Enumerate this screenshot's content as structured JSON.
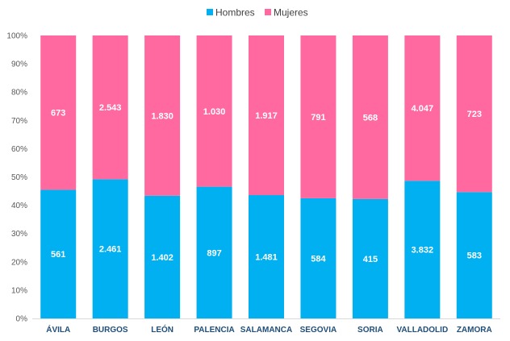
{
  "chart_data": {
    "type": "bar",
    "stacking": "percent",
    "categories": [
      "ÁVILA",
      "BURGOS",
      "LEÓN",
      "PALENCIA",
      "SALAMANCA",
      "SEGOVIA",
      "SORIA",
      "VALLADOLID",
      "ZAMORA"
    ],
    "series": [
      {
        "name": "Hombres",
        "color": "#00b0f0",
        "values": [
          561,
          2461,
          1402,
          897,
          1481,
          584,
          415,
          3832,
          583
        ],
        "labels": [
          "561",
          "2.461",
          "1.402",
          "897",
          "1.481",
          "584",
          "415",
          "3.832",
          "583"
        ]
      },
      {
        "name": "Mujeres",
        "color": "#ff69a0",
        "values": [
          673,
          2543,
          1830,
          1030,
          1917,
          791,
          568,
          4047,
          723
        ],
        "labels": [
          "673",
          "2.543",
          "1.830",
          "1.030",
          "1.917",
          "791",
          "568",
          "4.047",
          "723"
        ]
      }
    ],
    "yticks": [
      "0%",
      "10%",
      "20%",
      "30%",
      "40%",
      "50%",
      "60%",
      "70%",
      "80%",
      "90%",
      "100%"
    ],
    "ylim": [
      0,
      100
    ],
    "legend_position": "top",
    "grid": false
  }
}
